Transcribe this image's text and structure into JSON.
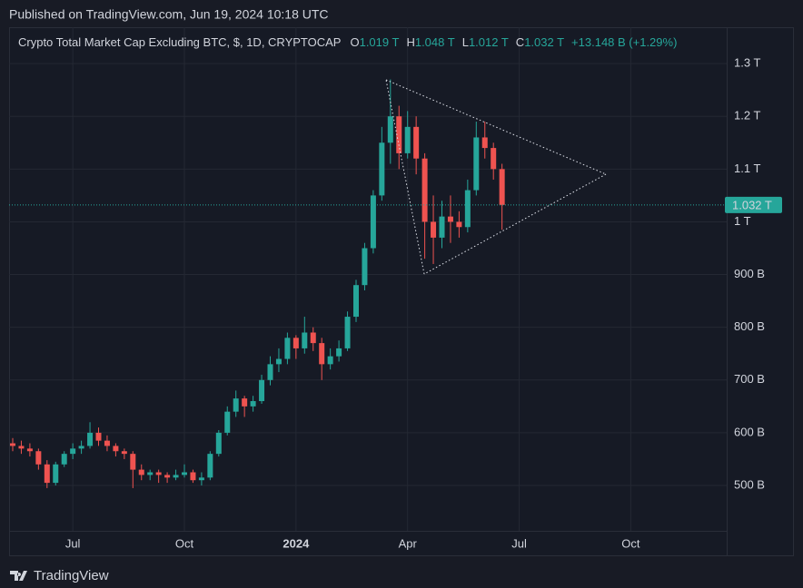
{
  "chart_data": {
    "type": "candlestick",
    "published": "Published on TradingView.com, Jun 19, 2024 10:18 UTC",
    "title": "Crypto Total Market Cap Excluding BTC, $, 1D, CRYPTOCAP",
    "legend_items": [
      {
        "label": "O",
        "value": "1.019 T"
      },
      {
        "label": "H",
        "value": "1.048 T"
      },
      {
        "label": "L",
        "value": "1.012 T"
      },
      {
        "label": "C",
        "value": "1.032 T"
      }
    ],
    "change": "+13.148 B (+1.29%)",
    "brand": "TradingView",
    "up_color": "#26a69a",
    "down_color": "#ef5350",
    "last_price": {
      "value": 1032,
      "label": "1.032 T"
    },
    "categories": [
      null,
      null,
      null,
      null,
      null,
      null,
      null,
      "Jul",
      null,
      null,
      null,
      null,
      null,
      null,
      null,
      null,
      null,
      null,
      null,
      null,
      "Oct",
      null,
      null,
      null,
      null,
      null,
      null,
      null,
      null,
      null,
      null,
      null,
      null,
      "2024",
      null,
      null,
      null,
      null,
      null,
      null,
      null,
      null,
      null,
      null,
      null,
      null,
      "Apr",
      null,
      null,
      null,
      null,
      null,
      null,
      null,
      null,
      null,
      null,
      null,
      null,
      "Jul",
      null,
      null,
      null,
      null,
      null,
      null,
      null,
      null,
      null,
      null,
      null,
      null,
      "Oct",
      null,
      null,
      null,
      null,
      null,
      null,
      null,
      null,
      null,
      null,
      null
    ],
    "open": [
      580,
      575,
      570,
      565,
      540,
      505,
      540,
      560,
      570,
      575,
      600,
      585,
      575,
      565,
      560,
      530,
      520,
      525,
      520,
      515,
      520,
      525,
      510,
      515,
      560,
      600,
      640,
      665,
      650,
      660,
      700,
      730,
      740,
      780,
      760,
      790,
      770,
      730,
      745,
      760,
      820,
      880,
      950,
      1050,
      1150,
      1200,
      1130,
      1180,
      1120,
      1000,
      970,
      1010,
      1000,
      990,
      1060,
      1160,
      1140,
      1100,
      null,
      null,
      null,
      null,
      null,
      null,
      null,
      null,
      null,
      null,
      null,
      null,
      null,
      null,
      null,
      null,
      null,
      null,
      null,
      null,
      null,
      null,
      null,
      null,
      null,
      null
    ],
    "high": [
      590,
      585,
      580,
      570,
      548,
      545,
      565,
      580,
      585,
      620,
      610,
      595,
      580,
      570,
      565,
      540,
      530,
      530,
      525,
      530,
      540,
      530,
      525,
      565,
      605,
      650,
      680,
      670,
      670,
      710,
      745,
      760,
      790,
      785,
      820,
      800,
      780,
      760,
      775,
      830,
      890,
      960,
      1060,
      1180,
      1270,
      1220,
      1210,
      1200,
      1130,
      1050,
      1040,
      1050,
      1020,
      1080,
      1190,
      1190,
      1150,
      1110,
      null,
      null,
      null,
      null,
      null,
      null,
      null,
      null,
      null,
      null,
      null,
      null,
      null,
      null,
      null,
      null,
      null,
      null,
      null,
      null,
      null,
      null,
      null,
      null,
      null,
      null
    ],
    "low": [
      565,
      560,
      555,
      530,
      495,
      500,
      535,
      550,
      560,
      570,
      575,
      565,
      555,
      550,
      495,
      510,
      510,
      505,
      505,
      510,
      515,
      505,
      500,
      510,
      555,
      595,
      630,
      630,
      640,
      655,
      690,
      715,
      730,
      740,
      750,
      755,
      700,
      720,
      735,
      755,
      810,
      870,
      940,
      1040,
      1110,
      1100,
      1120,
      1090,
      930,
      920,
      950,
      960,
      970,
      980,
      1050,
      1120,
      1080,
      985,
      null,
      null,
      null,
      null,
      null,
      null,
      null,
      null,
      null,
      null,
      null,
      null,
      null,
      null,
      null,
      null,
      null,
      null,
      null,
      null,
      null,
      null,
      null,
      null,
      null,
      null
    ],
    "close": [
      575,
      570,
      565,
      540,
      505,
      540,
      560,
      570,
      575,
      600,
      585,
      575,
      565,
      560,
      530,
      520,
      525,
      520,
      515,
      520,
      525,
      510,
      515,
      560,
      600,
      640,
      665,
      650,
      660,
      700,
      730,
      740,
      780,
      760,
      790,
      770,
      730,
      745,
      760,
      820,
      880,
      950,
      1050,
      1150,
      1200,
      1130,
      1180,
      1120,
      1000,
      970,
      1010,
      1000,
      990,
      1060,
      1160,
      1140,
      1100,
      1032,
      null,
      null,
      null,
      null,
      null,
      null,
      null,
      null,
      null,
      null,
      null,
      null,
      null,
      null,
      null,
      null,
      null,
      null,
      null,
      null,
      null,
      null,
      null,
      null,
      null,
      null
    ],
    "ylim": [
      414,
      1369
    ],
    "yticks": [
      {
        "value": 500,
        "label": "500 B"
      },
      {
        "value": 600,
        "label": "600 B"
      },
      {
        "value": 700,
        "label": "700 B"
      },
      {
        "value": 800,
        "label": "800 B"
      },
      {
        "value": 900,
        "label": "900 B"
      },
      {
        "value": 1000,
        "label": "1 T"
      },
      {
        "value": 1100,
        "label": "1.1 T"
      },
      {
        "value": 1200,
        "label": "1.2 T"
      },
      {
        "value": 1300,
        "label": "1.3 T"
      }
    ],
    "grid": true
  }
}
